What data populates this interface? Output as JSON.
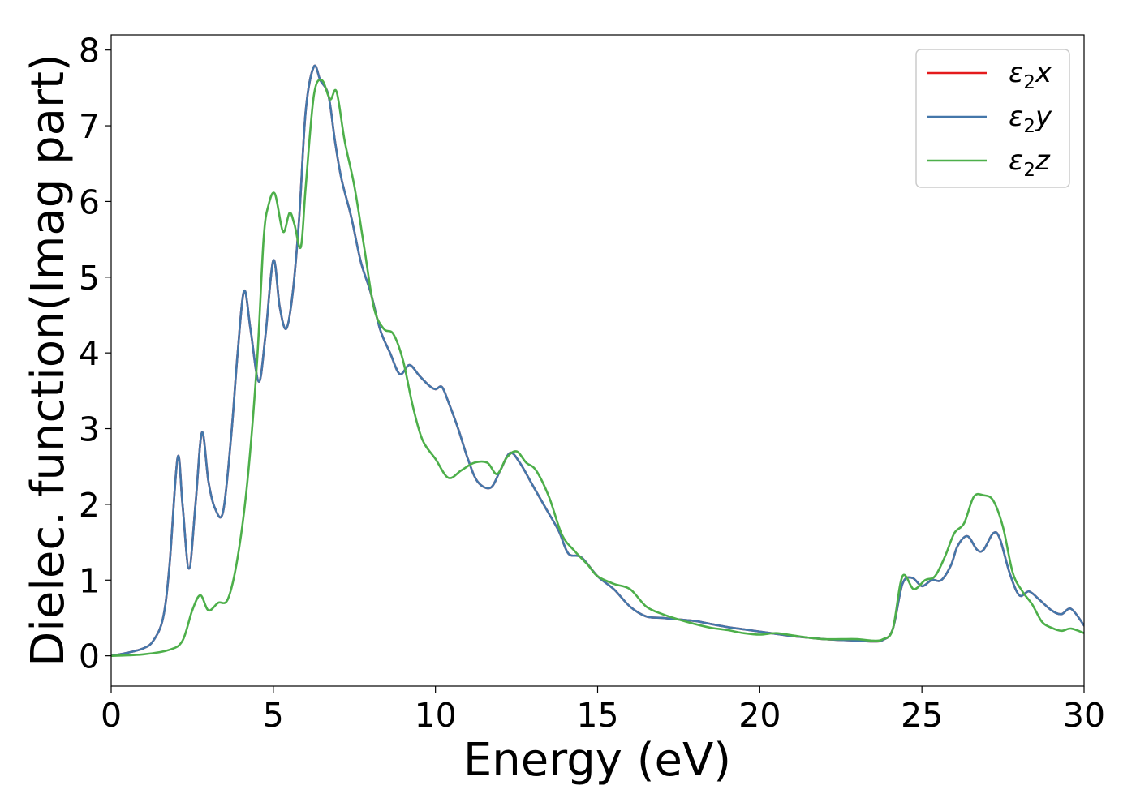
{
  "chart_data": {
    "type": "line",
    "title": "",
    "xlabel": "Energy (eV)",
    "ylabel": "Dielec. function(Imag part)",
    "xlim": [
      0,
      30
    ],
    "ylim": [
      -0.4,
      8.2
    ],
    "xticks": [
      0,
      5,
      10,
      15,
      20,
      25,
      30
    ],
    "yticks": [
      0,
      1,
      2,
      3,
      4,
      5,
      6,
      7,
      8
    ],
    "grid": false,
    "legend": "top-right",
    "series": [
      {
        "name": "ε₂x",
        "legend_base": "ε",
        "legend_sub": "2",
        "legend_axis": "x",
        "color": "#e41a1c",
        "x": [
          0,
          0.5,
          1.0,
          1.3,
          1.6,
          1.8,
          2.05,
          2.2,
          2.4,
          2.6,
          2.8,
          3.0,
          3.2,
          3.45,
          3.7,
          3.9,
          4.1,
          4.3,
          4.55,
          4.75,
          5.0,
          5.2,
          5.4,
          5.6,
          5.8,
          6.0,
          6.25,
          6.45,
          6.7,
          6.9,
          7.1,
          7.4,
          7.7,
          8.0,
          8.3,
          8.6,
          8.9,
          9.2,
          9.5,
          9.8,
          10.0,
          10.2,
          10.4,
          10.7,
          11.0,
          11.3,
          11.7,
          12.0,
          12.3,
          12.6,
          13.0,
          13.4,
          13.8,
          14.1,
          14.5,
          15.0,
          15.5,
          16.0,
          16.5,
          17.0,
          17.5,
          18.0,
          18.5,
          19.0,
          19.5,
          20.0,
          20.5,
          21.0,
          21.5,
          22.0,
          22.5,
          23.0,
          23.5,
          23.8,
          24.1,
          24.4,
          24.7,
          25.0,
          25.3,
          25.6,
          25.9,
          26.1,
          26.4,
          26.7,
          26.9,
          27.2,
          27.4,
          27.7,
          28.0,
          28.3,
          28.6,
          29.0,
          29.3,
          29.6,
          30.0
        ],
        "y": [
          0.0,
          0.04,
          0.1,
          0.2,
          0.5,
          1.2,
          2.62,
          2.0,
          1.15,
          2.0,
          2.95,
          2.3,
          1.95,
          1.9,
          2.9,
          4.0,
          4.82,
          4.3,
          3.62,
          4.2,
          5.22,
          4.6,
          4.32,
          4.8,
          5.8,
          7.2,
          7.78,
          7.6,
          7.4,
          6.8,
          6.3,
          5.8,
          5.2,
          4.8,
          4.3,
          4.0,
          3.72,
          3.84,
          3.7,
          3.57,
          3.52,
          3.55,
          3.35,
          3.0,
          2.6,
          2.3,
          2.22,
          2.45,
          2.68,
          2.55,
          2.25,
          1.95,
          1.65,
          1.35,
          1.3,
          1.05,
          0.88,
          0.65,
          0.52,
          0.5,
          0.48,
          0.46,
          0.42,
          0.38,
          0.35,
          0.32,
          0.29,
          0.26,
          0.24,
          0.22,
          0.21,
          0.2,
          0.19,
          0.21,
          0.35,
          0.95,
          1.03,
          0.92,
          1.0,
          1.0,
          1.2,
          1.45,
          1.58,
          1.4,
          1.4,
          1.62,
          1.55,
          1.1,
          0.8,
          0.85,
          0.75,
          0.6,
          0.55,
          0.62,
          0.4
        ]
      },
      {
        "name": "ε₂y",
        "legend_base": "ε",
        "legend_sub": "2",
        "legend_axis": "y",
        "color": "#4477aa",
        "x": [
          0,
          0.5,
          1.0,
          1.3,
          1.6,
          1.8,
          2.05,
          2.2,
          2.4,
          2.6,
          2.8,
          3.0,
          3.2,
          3.45,
          3.7,
          3.9,
          4.1,
          4.3,
          4.55,
          4.75,
          5.0,
          5.2,
          5.4,
          5.6,
          5.8,
          6.0,
          6.25,
          6.45,
          6.7,
          6.9,
          7.1,
          7.4,
          7.7,
          8.0,
          8.3,
          8.6,
          8.9,
          9.2,
          9.5,
          9.8,
          10.0,
          10.2,
          10.4,
          10.7,
          11.0,
          11.3,
          11.7,
          12.0,
          12.3,
          12.6,
          13.0,
          13.4,
          13.8,
          14.1,
          14.5,
          15.0,
          15.5,
          16.0,
          16.5,
          17.0,
          17.5,
          18.0,
          18.5,
          19.0,
          19.5,
          20.0,
          20.5,
          21.0,
          21.5,
          22.0,
          22.5,
          23.0,
          23.5,
          23.8,
          24.1,
          24.4,
          24.7,
          25.0,
          25.3,
          25.6,
          25.9,
          26.1,
          26.4,
          26.7,
          26.9,
          27.2,
          27.4,
          27.7,
          28.0,
          28.3,
          28.6,
          29.0,
          29.3,
          29.6,
          30.0
        ],
        "y": [
          0.0,
          0.04,
          0.1,
          0.2,
          0.5,
          1.2,
          2.62,
          2.0,
          1.15,
          2.0,
          2.95,
          2.3,
          1.95,
          1.9,
          2.9,
          4.0,
          4.82,
          4.3,
          3.62,
          4.2,
          5.22,
          4.6,
          4.32,
          4.8,
          5.8,
          7.2,
          7.78,
          7.6,
          7.4,
          6.8,
          6.3,
          5.8,
          5.2,
          4.8,
          4.3,
          4.0,
          3.72,
          3.84,
          3.7,
          3.57,
          3.52,
          3.55,
          3.35,
          3.0,
          2.6,
          2.3,
          2.22,
          2.45,
          2.68,
          2.55,
          2.25,
          1.95,
          1.65,
          1.35,
          1.3,
          1.05,
          0.88,
          0.65,
          0.52,
          0.5,
          0.48,
          0.46,
          0.42,
          0.38,
          0.35,
          0.32,
          0.29,
          0.26,
          0.24,
          0.22,
          0.21,
          0.2,
          0.19,
          0.21,
          0.35,
          0.95,
          1.03,
          0.92,
          1.0,
          1.0,
          1.2,
          1.45,
          1.58,
          1.4,
          1.4,
          1.62,
          1.55,
          1.1,
          0.8,
          0.85,
          0.75,
          0.6,
          0.55,
          0.62,
          0.4
        ]
      },
      {
        "name": "ε₂z",
        "legend_base": "ε",
        "legend_sub": "2",
        "legend_axis": "z",
        "color": "#4daf4a",
        "x": [
          0,
          1.0,
          1.8,
          2.2,
          2.5,
          2.75,
          3.0,
          3.3,
          3.6,
          3.9,
          4.2,
          4.5,
          4.7,
          4.85,
          5.05,
          5.3,
          5.5,
          5.65,
          5.85,
          6.0,
          6.25,
          6.5,
          6.75,
          6.95,
          7.2,
          7.5,
          7.8,
          8.1,
          8.4,
          8.7,
          9.0,
          9.3,
          9.6,
          10.0,
          10.4,
          10.8,
          11.2,
          11.6,
          11.9,
          12.2,
          12.5,
          12.8,
          13.1,
          13.5,
          13.9,
          14.3,
          14.7,
          15.0,
          15.5,
          16.0,
          16.5,
          17.0,
          17.5,
          18.0,
          18.5,
          19.0,
          19.5,
          20.0,
          20.5,
          21.0,
          21.5,
          22.0,
          22.5,
          23.0,
          23.5,
          23.8,
          24.1,
          24.4,
          24.75,
          25.1,
          25.4,
          25.7,
          26.0,
          26.3,
          26.6,
          26.9,
          27.2,
          27.5,
          27.8,
          28.1,
          28.4,
          28.7,
          29.0,
          29.3,
          29.6,
          30.0
        ],
        "y": [
          0.0,
          0.02,
          0.08,
          0.2,
          0.6,
          0.8,
          0.6,
          0.7,
          0.75,
          1.3,
          2.3,
          3.9,
          5.5,
          5.95,
          6.1,
          5.6,
          5.85,
          5.7,
          5.4,
          6.2,
          7.4,
          7.6,
          7.35,
          7.45,
          6.8,
          6.2,
          5.4,
          4.6,
          4.32,
          4.25,
          3.9,
          3.3,
          2.85,
          2.6,
          2.35,
          2.45,
          2.55,
          2.55,
          2.4,
          2.62,
          2.7,
          2.55,
          2.45,
          2.1,
          1.6,
          1.38,
          1.2,
          1.05,
          0.95,
          0.88,
          0.65,
          0.55,
          0.48,
          0.42,
          0.37,
          0.34,
          0.3,
          0.28,
          0.3,
          0.27,
          0.24,
          0.22,
          0.22,
          0.22,
          0.2,
          0.22,
          0.35,
          1.05,
          0.88,
          1.0,
          1.05,
          1.3,
          1.62,
          1.75,
          2.1,
          2.12,
          2.05,
          1.7,
          1.1,
          0.85,
          0.68,
          0.45,
          0.37,
          0.33,
          0.36,
          0.3
        ]
      }
    ]
  }
}
